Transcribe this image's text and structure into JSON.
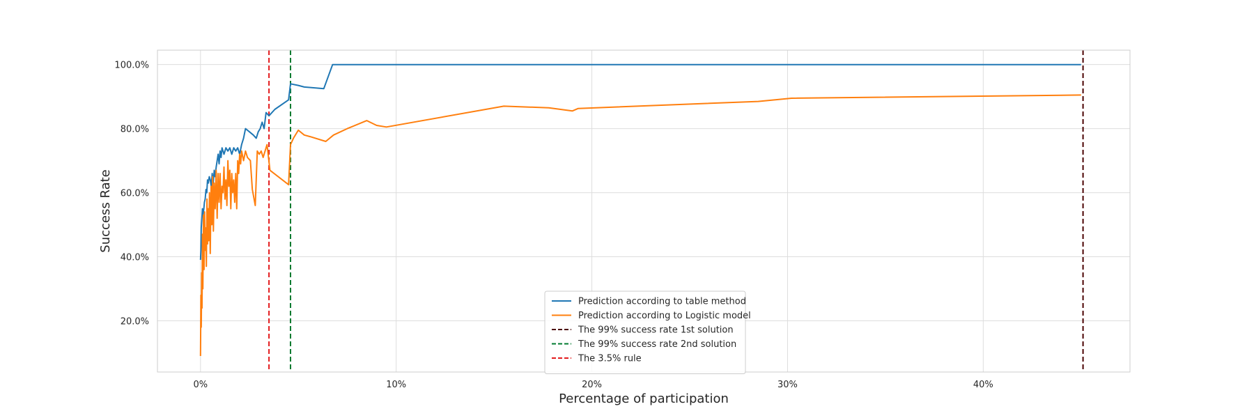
{
  "chart_data": {
    "type": "line",
    "title": "",
    "xlabel": "Percentage of participation",
    "ylabel": "Success Rate",
    "xlim": [
      -2.2,
      47.5
    ],
    "ylim": [
      4.0,
      104.5
    ],
    "x_ticks": [
      {
        "value": 0,
        "label": "0%"
      },
      {
        "value": 10,
        "label": "10%"
      },
      {
        "value": 20,
        "label": "20%"
      },
      {
        "value": 30,
        "label": "30%"
      },
      {
        "value": 40,
        "label": "40%"
      }
    ],
    "y_ticks": [
      {
        "value": 20,
        "label": "20.0%"
      },
      {
        "value": 40,
        "label": "40.0%"
      },
      {
        "value": 60,
        "label": "60.0%"
      },
      {
        "value": 80,
        "label": "80.0%"
      },
      {
        "value": 100,
        "label": "100.0%"
      }
    ],
    "grid": true,
    "legend_position": "bottom-center",
    "series": [
      {
        "name": "Prediction according to table method",
        "color": "#1f77b4",
        "style": "solid",
        "x": [
          0.0,
          0.02,
          0.04,
          0.07,
          0.1,
          0.13,
          0.17,
          0.2,
          0.24,
          0.28,
          0.32,
          0.36,
          0.4,
          0.45,
          0.5,
          0.55,
          0.6,
          0.65,
          0.7,
          0.75,
          0.8,
          0.85,
          0.9,
          0.95,
          1.0,
          1.05,
          1.1,
          1.2,
          1.3,
          1.4,
          1.5,
          1.6,
          1.7,
          1.8,
          1.9,
          2.0,
          2.1,
          2.2,
          2.3,
          2.5,
          2.7,
          2.85,
          2.95,
          3.05,
          3.15,
          3.25,
          3.35,
          3.5,
          3.8,
          4.5,
          4.6,
          5.0,
          5.3,
          6.3,
          6.75,
          45.0
        ],
        "y": [
          39,
          42,
          49,
          52,
          55,
          53,
          55,
          57,
          58,
          61,
          60,
          64,
          63,
          65,
          64,
          62,
          66,
          63,
          67,
          65,
          68,
          70,
          72,
          69,
          73,
          71,
          74,
          72,
          74,
          73,
          74,
          72,
          74,
          73,
          74,
          72,
          75,
          77,
          80,
          79,
          78,
          77,
          79,
          80,
          82,
          80,
          85,
          84,
          86,
          89,
          94,
          93.5,
          93,
          92.5,
          100,
          100
        ]
      },
      {
        "name": "Prediction according to Logistic model",
        "color": "#ff7f0e",
        "style": "solid",
        "x": [
          0.0,
          0.02,
          0.04,
          0.06,
          0.08,
          0.1,
          0.12,
          0.15,
          0.18,
          0.21,
          0.24,
          0.27,
          0.3,
          0.33,
          0.36,
          0.39,
          0.42,
          0.46,
          0.5,
          0.54,
          0.58,
          0.62,
          0.66,
          0.7,
          0.75,
          0.8,
          0.85,
          0.9,
          0.95,
          1.0,
          1.05,
          1.1,
          1.15,
          1.2,
          1.25,
          1.3,
          1.35,
          1.4,
          1.45,
          1.5,
          1.55,
          1.6,
          1.65,
          1.7,
          1.75,
          1.8,
          1.85,
          1.9,
          1.95,
          2.0,
          2.05,
          2.1,
          2.2,
          2.3,
          2.4,
          2.55,
          2.65,
          2.8,
          2.9,
          3.0,
          3.1,
          3.2,
          3.3,
          3.4,
          3.55,
          4.5,
          4.6,
          4.75,
          5.0,
          5.3,
          5.6,
          6.4,
          6.8,
          7.5,
          8.5,
          9.0,
          9.5,
          15.5,
          17.8,
          19.0,
          19.3,
          28.5,
          30.2,
          45.0
        ],
        "y": [
          9,
          28,
          18,
          35,
          24,
          47,
          30,
          53,
          36,
          54,
          42,
          49,
          37,
          58,
          44,
          55,
          45,
          60,
          41,
          62,
          50,
          65,
          48,
          63,
          55,
          67,
          52,
          66,
          57,
          66,
          55,
          62,
          60,
          68,
          58,
          64,
          56,
          70,
          62,
          67,
          55,
          66,
          60,
          64,
          57,
          66,
          55,
          70,
          66,
          72,
          69,
          73,
          70,
          73,
          71,
          70,
          61,
          56,
          73,
          72,
          73,
          71,
          73,
          75,
          67,
          62.5,
          75,
          77,
          79.5,
          78,
          77.5,
          76,
          78,
          80,
          82.5,
          81,
          80.5,
          87,
          86.5,
          85.5,
          86.3,
          88.5,
          89.5,
          90.5
        ]
      },
      {
        "name": "The 99% success rate 1st solution",
        "color": "#4a0000",
        "style": "dashed",
        "vline_x": 45.1
      },
      {
        "name": "The 99% success rate 2nd solution",
        "color": "#007a2f",
        "style": "dashed",
        "vline_x": 4.6
      },
      {
        "name": "The 3.5% rule",
        "color": "#e31a1c",
        "style": "dashed",
        "vline_x": 3.5
      }
    ]
  }
}
